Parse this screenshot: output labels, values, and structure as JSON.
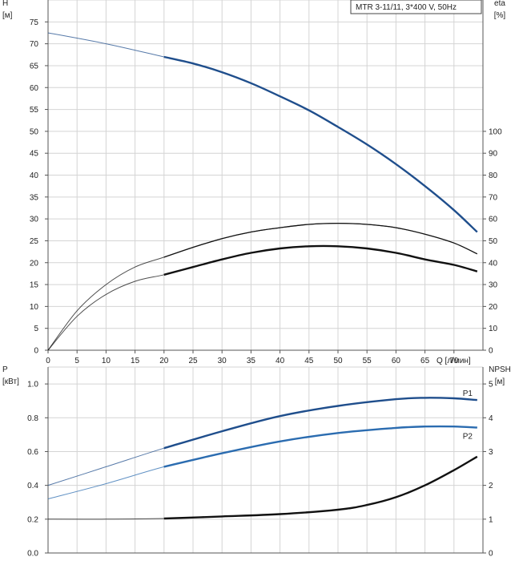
{
  "chart_data": [
    {
      "type": "line",
      "title": "MTR 3-11/11, 3*400 V, 50Hz",
      "xlabel": "Q [л/мин]",
      "ylabel_left": "H",
      "ylabel_left_unit": "[м]",
      "ylabel_right": "eta",
      "ylabel_right_unit": "[%]",
      "xlim": [
        0,
        75
      ],
      "ylim_left": [
        0,
        80
      ],
      "ylim_right": [
        0,
        160
      ],
      "x_ticks": [
        0,
        5,
        10,
        15,
        20,
        25,
        30,
        35,
        40,
        45,
        50,
        55,
        60,
        65,
        70
      ],
      "x_tick_labels": [
        "0",
        "5",
        "10",
        "15",
        "20",
        "25",
        "30",
        "35",
        "40",
        "45",
        "50",
        "55",
        "60",
        "65",
        "70"
      ],
      "y_left_ticks": [
        0,
        5,
        10,
        15,
        20,
        25,
        30,
        35,
        40,
        45,
        50,
        55,
        60,
        65,
        70,
        75
      ],
      "y_left_tick_labels": [
        "0",
        "5",
        "10",
        "15",
        "20",
        "25",
        "30",
        "35",
        "40",
        "45",
        "50",
        "55",
        "60",
        "65",
        "70",
        "75"
      ],
      "y_right_ticks": [
        0,
        10,
        20,
        30,
        40,
        50,
        60,
        70,
        80,
        90,
        100
      ],
      "y_right_tick_labels": [
        "0",
        "10",
        "20",
        "30",
        "40",
        "50",
        "60",
        "70",
        "80",
        "90",
        "100"
      ],
      "grid": true,
      "series": [
        {
          "axis": "left",
          "color": "#1f4e8c",
          "x": [
            0,
            10,
            20,
            25,
            30,
            35,
            40,
            45,
            50,
            55,
            60,
            65,
            70,
            74
          ],
          "y": [
            72.5,
            70,
            67,
            65.5,
            63.5,
            61,
            58,
            54.8,
            51,
            47,
            42.5,
            37.5,
            32,
            27
          ]
        },
        {
          "axis": "right",
          "color": "#111111",
          "x": [
            0,
            5,
            10,
            15,
            20,
            25,
            30,
            35,
            40,
            45,
            50,
            55,
            60,
            65,
            70,
            74
          ],
          "y": [
            0,
            18,
            30,
            38,
            42.5,
            47,
            51,
            54,
            56,
            57.5,
            58,
            57.5,
            56,
            53,
            49,
            44
          ]
        },
        {
          "axis": "right",
          "color": "#111111",
          "x": [
            0,
            5,
            10,
            15,
            20,
            25,
            30,
            35,
            40,
            45,
            50,
            55,
            60,
            65,
            70,
            74
          ],
          "y": [
            0,
            15.5,
            25.5,
            31.5,
            34.5,
            38,
            41.5,
            44.5,
            46.5,
            47.5,
            47.5,
            46.5,
            44.5,
            41.5,
            39,
            36
          ]
        }
      ]
    },
    {
      "type": "line",
      "ylabel_left": "P",
      "ylabel_left_unit": "[кВт]",
      "ylabel_right": "NPSH",
      "ylabel_right_unit": "[м]",
      "xlim": [
        0,
        75
      ],
      "ylim_left": [
        0,
        1.1
      ],
      "ylim_right": [
        0,
        5.5
      ],
      "y_left_ticks": [
        0,
        0.2,
        0.4,
        0.6,
        0.8,
        1.0
      ],
      "y_left_tick_labels": [
        "0.0",
        "0.2",
        "0.4",
        "0.6",
        "0.8",
        "1.0"
      ],
      "y_right_ticks": [
        0,
        1,
        2,
        3,
        4,
        5
      ],
      "y_right_tick_labels": [
        "0",
        "1",
        "2",
        "3",
        "4",
        "5"
      ],
      "grid": true,
      "series": [
        {
          "name": "P1",
          "axis": "left",
          "color": "#1f4e8c",
          "x": [
            0,
            10,
            20,
            30,
            40,
            50,
            60,
            65,
            70,
            74
          ],
          "y": [
            0.4,
            0.51,
            0.62,
            0.72,
            0.81,
            0.87,
            0.91,
            0.918,
            0.915,
            0.905
          ]
        },
        {
          "name": "P2",
          "axis": "left",
          "color": "#2b6cb0",
          "x": [
            0,
            10,
            20,
            30,
            40,
            50,
            60,
            65,
            70,
            74
          ],
          "y": [
            0.32,
            0.41,
            0.51,
            0.59,
            0.66,
            0.71,
            0.74,
            0.748,
            0.748,
            0.742
          ]
        },
        {
          "axis": "right",
          "color": "#111111",
          "x": [
            0,
            10,
            20,
            30,
            40,
            50,
            55,
            60,
            65,
            70,
            74
          ],
          "y": [
            1.0,
            1.0,
            1.02,
            1.08,
            1.15,
            1.28,
            1.42,
            1.65,
            2.0,
            2.45,
            2.85
          ]
        }
      ]
    }
  ]
}
